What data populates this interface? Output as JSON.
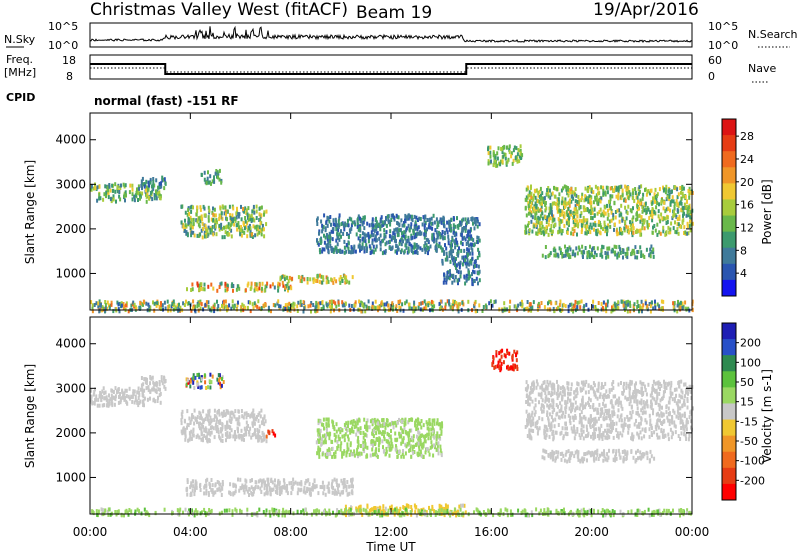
{
  "header": {
    "station": "Christmas Valley West (fitACF)",
    "beam": "Beam 19",
    "date": "19/Apr/2016"
  },
  "noise_panel": {
    "left_label": "N.Sky",
    "right_label": "N.Search",
    "left_ticks": [
      "10^5",
      "10^0"
    ],
    "right_ticks": [
      "10^5",
      "10^0"
    ]
  },
  "freq_panel": {
    "left_label_1": "Freq.",
    "left_label_2": "[MHz]",
    "left_ticks": [
      "18",
      "8"
    ],
    "right_label": "Nave",
    "right_ticks": [
      "60",
      "0"
    ],
    "cpid_label": "CPID",
    "cpid_text": "normal (fast) -151 RF"
  },
  "x_axis": {
    "label": "Time UT",
    "ticks": [
      "00:00",
      "04:00",
      "08:00",
      "12:00",
      "16:00",
      "20:00",
      "00:00"
    ]
  },
  "chart_data": [
    {
      "type": "heatmap",
      "title": "Power",
      "ylabel": "Slant Range [km]",
      "xlabel": "",
      "xlim": [
        0,
        24
      ],
      "ylim": [
        180,
        4600
      ],
      "y_ticks": [
        "1000",
        "2000",
        "3000",
        "4000"
      ],
      "colorbar": {
        "label": "Power [dB]",
        "range": [
          0,
          31
        ],
        "ticks": [
          "4",
          "8",
          "12",
          "16",
          "20",
          "24",
          "28"
        ],
        "colors": [
          "#1414f0",
          "#2a55b0",
          "#3f7a9a",
          "#3c9a6e",
          "#69b84a",
          "#a8cc3c",
          "#f0c832",
          "#f09628",
          "#f06a1e",
          "#e63c14",
          "#dc1414"
        ]
      },
      "regions": [
        {
          "t": [
            0.0,
            2.8
          ],
          "r": [
            2650,
            3050
          ],
          "level": [
            6,
            18
          ]
        },
        {
          "t": [
            2.0,
            3.0
          ],
          "r": [
            2950,
            3200
          ],
          "level": [
            4,
            12
          ]
        },
        {
          "t": [
            4.4,
            5.2
          ],
          "r": [
            3050,
            3350
          ],
          "level": [
            6,
            14
          ]
        },
        {
          "t": [
            3.6,
            7.0
          ],
          "r": [
            1850,
            2550
          ],
          "level": [
            6,
            20
          ]
        },
        {
          "t": [
            3.8,
            8.0
          ],
          "r": [
            650,
            820
          ],
          "level": [
            8,
            28
          ]
        },
        {
          "t": [
            7.5,
            10.5
          ],
          "r": [
            830,
            1000
          ],
          "level": [
            10,
            24
          ]
        },
        {
          "t": [
            9.0,
            14.0
          ],
          "r": [
            1500,
            2350
          ],
          "level": [
            4,
            10
          ]
        },
        {
          "t": [
            14.0,
            15.5
          ],
          "r": [
            800,
            2300
          ],
          "level": [
            4,
            10
          ]
        },
        {
          "t": [
            15.8,
            17.2
          ],
          "r": [
            3450,
            3900
          ],
          "level": [
            8,
            18
          ]
        },
        {
          "t": [
            17.3,
            24.0
          ],
          "r": [
            1900,
            3000
          ],
          "level": [
            8,
            20
          ]
        },
        {
          "t": [
            18.0,
            22.5
          ],
          "r": [
            1400,
            1650
          ],
          "level": [
            6,
            14
          ]
        },
        {
          "t": [
            0.0,
            24.0
          ],
          "r": [
            190,
            420
          ],
          "level": [
            4,
            24
          ]
        }
      ]
    },
    {
      "type": "heatmap",
      "title": "Velocity",
      "ylabel": "Slant Range [km]",
      "xlabel": "Time UT",
      "xlim": [
        0,
        24
      ],
      "ylim": [
        180,
        4600
      ],
      "y_ticks": [
        "1000",
        "2000",
        "3000",
        "4000"
      ],
      "colorbar": {
        "label": "Velocity [m s-1]",
        "range": [
          -250,
          250
        ],
        "ticks": [
          "200",
          "100",
          "50",
          "15",
          "-15",
          "-50",
          "-100",
          "-200"
        ],
        "colors": [
          "#1e1eb4",
          "#2850c8",
          "#2e8a50",
          "#5cc23c",
          "#9ad862",
          "#c8c8c8",
          "#f0c832",
          "#f09628",
          "#f06a1e",
          "#e63c14",
          "#ff0000"
        ]
      },
      "regions": [
        {
          "t": [
            0.0,
            2.8
          ],
          "r": [
            2650,
            3050
          ],
          "level": [
            -10,
            10
          ]
        },
        {
          "t": [
            2.0,
            3.0
          ],
          "r": [
            2950,
            3300
          ],
          "level": [
            -10,
            10
          ]
        },
        {
          "t": [
            3.8,
            5.3
          ],
          "r": [
            3050,
            3350
          ],
          "level": [
            -230,
            230
          ]
        },
        {
          "t": [
            3.6,
            7.0
          ],
          "r": [
            1850,
            2550
          ],
          "level": [
            -12,
            12
          ]
        },
        {
          "t": [
            7.0,
            7.4
          ],
          "r": [
            1950,
            2100
          ],
          "level": [
            -220,
            -150
          ]
        },
        {
          "t": [
            3.8,
            10.5
          ],
          "r": [
            650,
            1000
          ],
          "level": [
            -10,
            10
          ]
        },
        {
          "t": [
            9.0,
            14.0
          ],
          "r": [
            1500,
            2350
          ],
          "level": [
            15,
            60
          ]
        },
        {
          "t": [
            16.0,
            17.0
          ],
          "r": [
            3450,
            3900
          ],
          "level": [
            -230,
            -160
          ]
        },
        {
          "t": [
            17.3,
            24.0
          ],
          "r": [
            1900,
            3200
          ],
          "level": [
            -12,
            12
          ]
        },
        {
          "t": [
            18.0,
            22.5
          ],
          "r": [
            1400,
            1650
          ],
          "level": [
            -12,
            12
          ]
        },
        {
          "t": [
            10.0,
            15.0
          ],
          "r": [
            190,
            420
          ],
          "level": [
            -60,
            -20
          ]
        },
        {
          "t": [
            0.0,
            24.0
          ],
          "r": [
            190,
            330
          ],
          "level": [
            15,
            80
          ]
        }
      ]
    }
  ]
}
